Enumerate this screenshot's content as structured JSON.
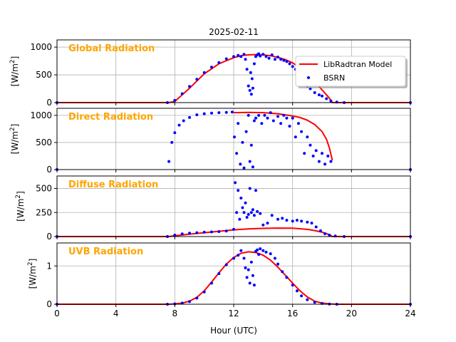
{
  "figure": {
    "title": "2025-02-11",
    "xlabel": "Hour (UTC)",
    "xticks": [
      "0",
      "4",
      "8",
      "12",
      "16",
      "20",
      "24"
    ],
    "ylabel_unit": "[W/m",
    "ylabel_sup": "2",
    "ylabel_close": "]",
    "legend": {
      "model": "LibRadtran Model",
      "obs": "BSRN"
    },
    "colors": {
      "model": "#ff0000",
      "obs": "#0000ff",
      "panel_label": "#ffa500",
      "grid": "#b0b0b0"
    },
    "legend_placement": "right, first panel"
  },
  "chart_data": [
    {
      "type": "line",
      "title": "Global Radiation",
      "xlim": [
        0,
        24
      ],
      "ylim": [
        0,
        1130
      ],
      "yticks": [
        "0",
        "500",
        "1000"
      ],
      "grid": true,
      "series": [
        {
          "name": "LibRadtran Model",
          "kind": "line",
          "x": [
            0,
            7.6,
            8.0,
            9.0,
            10.0,
            11.0,
            12.0,
            12.6,
            13.0,
            13.5,
            14.0,
            14.5,
            15.0,
            15.5,
            16.0,
            16.5,
            17.0,
            17.5,
            18.0,
            18.5,
            18.7,
            24
          ],
          "y": [
            0,
            0,
            20,
            260,
            520,
            700,
            810,
            850,
            860,
            865,
            860,
            845,
            815,
            775,
            715,
            630,
            510,
            380,
            230,
            80,
            0,
            0
          ]
        },
        {
          "name": "BSRN",
          "kind": "scatter",
          "x": [
            0,
            7.5,
            8.0,
            8.5,
            9.0,
            9.5,
            10.0,
            10.5,
            11.0,
            11.5,
            12.0,
            12.3,
            12.5,
            12.7,
            12.8,
            12.9,
            13.0,
            13.1,
            13.15,
            13.2,
            13.25,
            13.3,
            13.4,
            13.5,
            13.6,
            13.7,
            13.8,
            14.0,
            14.2,
            14.4,
            14.6,
            14.8,
            15.0,
            15.2,
            15.4,
            15.6,
            15.8,
            16.0,
            16.2,
            16.4,
            16.6,
            16.8,
            17.0,
            17.2,
            17.5,
            17.8,
            18.0,
            18.3,
            18.6,
            19.0,
            19.5,
            24
          ],
          "y": [
            0,
            0,
            40,
            160,
            290,
            420,
            540,
            640,
            720,
            790,
            830,
            850,
            830,
            870,
            780,
            600,
            300,
            220,
            540,
            150,
            430,
            260,
            700,
            830,
            860,
            880,
            840,
            870,
            830,
            800,
            860,
            780,
            820,
            780,
            760,
            740,
            700,
            650,
            600,
            520,
            600,
            430,
            300,
            250,
            180,
            140,
            120,
            70,
            30,
            10,
            0,
            0
          ]
        }
      ]
    },
    {
      "type": "line",
      "title": "Direct Radiation",
      "xlim": [
        0,
        24
      ],
      "ylim": [
        0,
        1130
      ],
      "yticks": [
        "0",
        "500",
        "1000"
      ],
      "grid": true,
      "series": [
        {
          "name": "LibRadtran Model",
          "kind": "line",
          "x": [
            12.0,
            13.0,
            14.0,
            15.0,
            16.0,
            16.5,
            17.0,
            17.5,
            18.0,
            18.3,
            18.5,
            18.7
          ],
          "y": [
            1050,
            1055,
            1050,
            1030,
            990,
            960,
            910,
            830,
            700,
            560,
            400,
            170
          ]
        },
        {
          "name": "BSRN",
          "kind": "scatter",
          "x": [
            0,
            7.6,
            7.8,
            8.0,
            8.3,
            8.6,
            9.0,
            9.5,
            10.0,
            10.5,
            11.0,
            11.5,
            11.9,
            12.05,
            12.2,
            12.3,
            12.45,
            12.6,
            12.7,
            12.85,
            13.0,
            13.1,
            13.2,
            13.3,
            13.4,
            13.5,
            13.7,
            13.9,
            14.1,
            14.3,
            14.5,
            14.7,
            15.0,
            15.2,
            15.4,
            15.6,
            15.8,
            16.0,
            16.2,
            16.4,
            16.6,
            16.8,
            17.0,
            17.2,
            17.4,
            17.6,
            17.8,
            18.0,
            18.2,
            18.4,
            18.6,
            24
          ],
          "y": [
            0,
            150,
            500,
            680,
            820,
            900,
            960,
            1010,
            1030,
            1040,
            1050,
            1055,
            1060,
            600,
            300,
            850,
            100,
            500,
            30,
            700,
            1000,
            150,
            450,
            50,
            900,
            950,
            1000,
            850,
            1000,
            950,
            1050,
            900,
            980,
            850,
            1000,
            950,
            800,
            950,
            600,
            850,
            700,
            300,
            600,
            450,
            250,
            350,
            150,
            300,
            100,
            250,
            150,
            0
          ]
        }
      ]
    },
    {
      "type": "line",
      "title": "Diffuse Radiation",
      "xlim": [
        0,
        24
      ],
      "ylim": [
        0,
        630
      ],
      "yticks": [
        "0",
        "250",
        "500"
      ],
      "grid": true,
      "series": [
        {
          "name": "LibRadtran Model",
          "kind": "line",
          "x": [
            0,
            7.6,
            8.0,
            9.0,
            10.0,
            11.0,
            12.0,
            13.0,
            14.0,
            15.0,
            16.0,
            17.0,
            17.5,
            18.0,
            18.5,
            18.7,
            24
          ],
          "y": [
            0,
            0,
            8,
            25,
            40,
            55,
            70,
            80,
            85,
            88,
            87,
            75,
            62,
            45,
            20,
            0,
            0
          ]
        },
        {
          "name": "BSRN",
          "kind": "scatter",
          "x": [
            0,
            7.5,
            8.0,
            8.5,
            9.0,
            9.5,
            10.0,
            10.5,
            11.0,
            11.5,
            12.0,
            12.1,
            12.2,
            12.3,
            12.4,
            12.5,
            12.6,
            12.7,
            12.8,
            12.9,
            13.0,
            13.1,
            13.2,
            13.3,
            13.4,
            13.5,
            13.6,
            13.8,
            14.0,
            14.3,
            14.6,
            15.0,
            15.3,
            15.6,
            16.0,
            16.3,
            16.6,
            17.0,
            17.3,
            17.6,
            17.9,
            18.2,
            18.5,
            18.9,
            19.5,
            24
          ],
          "y": [
            0,
            0,
            15,
            28,
            35,
            40,
            45,
            48,
            52,
            58,
            75,
            560,
            250,
            480,
            180,
            400,
            300,
            250,
            350,
            200,
            230,
            500,
            250,
            280,
            220,
            480,
            260,
            240,
            120,
            140,
            220,
            180,
            190,
            170,
            160,
            170,
            160,
            150,
            140,
            100,
            60,
            30,
            15,
            5,
            0,
            0
          ]
        }
      ]
    },
    {
      "type": "line",
      "title": "UVB Radiation",
      "xlim": [
        0,
        24
      ],
      "ylim": [
        0,
        1.6
      ],
      "yticks": [
        "0",
        "1"
      ],
      "grid": true,
      "series": [
        {
          "name": "LibRadtran Model",
          "kind": "line",
          "x": [
            0,
            7.6,
            8.0,
            8.5,
            9.0,
            9.5,
            10.0,
            10.5,
            11.0,
            11.5,
            12.0,
            12.5,
            13.0,
            13.5,
            14.0,
            14.5,
            15.0,
            15.5,
            16.0,
            16.5,
            17.0,
            17.5,
            18.0,
            18.5,
            19.0,
            24
          ],
          "y": [
            0,
            0,
            0.01,
            0.03,
            0.08,
            0.18,
            0.35,
            0.58,
            0.82,
            1.05,
            1.22,
            1.33,
            1.37,
            1.35,
            1.28,
            1.15,
            0.97,
            0.76,
            0.55,
            0.35,
            0.19,
            0.08,
            0.03,
            0.01,
            0,
            0
          ]
        },
        {
          "name": "BSRN",
          "kind": "scatter",
          "x": [
            0,
            7.5,
            8.0,
            8.5,
            9.0,
            9.5,
            10.0,
            10.5,
            11.0,
            11.5,
            12.0,
            12.3,
            12.5,
            12.7,
            12.8,
            12.9,
            13.0,
            13.1,
            13.2,
            13.3,
            13.4,
            13.5,
            13.6,
            13.7,
            13.8,
            14.0,
            14.2,
            14.5,
            14.8,
            15.0,
            15.3,
            15.6,
            16.0,
            16.3,
            16.6,
            17.0,
            17.5,
            18.0,
            18.5,
            19.0,
            24
          ],
          "y": [
            0,
            0,
            0.01,
            0.03,
            0.07,
            0.16,
            0.32,
            0.55,
            0.8,
            1.03,
            1.2,
            1.28,
            1.4,
            1.2,
            0.95,
            0.7,
            0.9,
            0.55,
            1.1,
            0.75,
            0.5,
            1.38,
            1.42,
            1.3,
            1.45,
            1.4,
            1.36,
            1.32,
            1.2,
            1.05,
            0.85,
            0.7,
            0.5,
            0.35,
            0.22,
            0.12,
            0.05,
            0.02,
            0.005,
            0,
            0
          ]
        }
      ]
    }
  ]
}
